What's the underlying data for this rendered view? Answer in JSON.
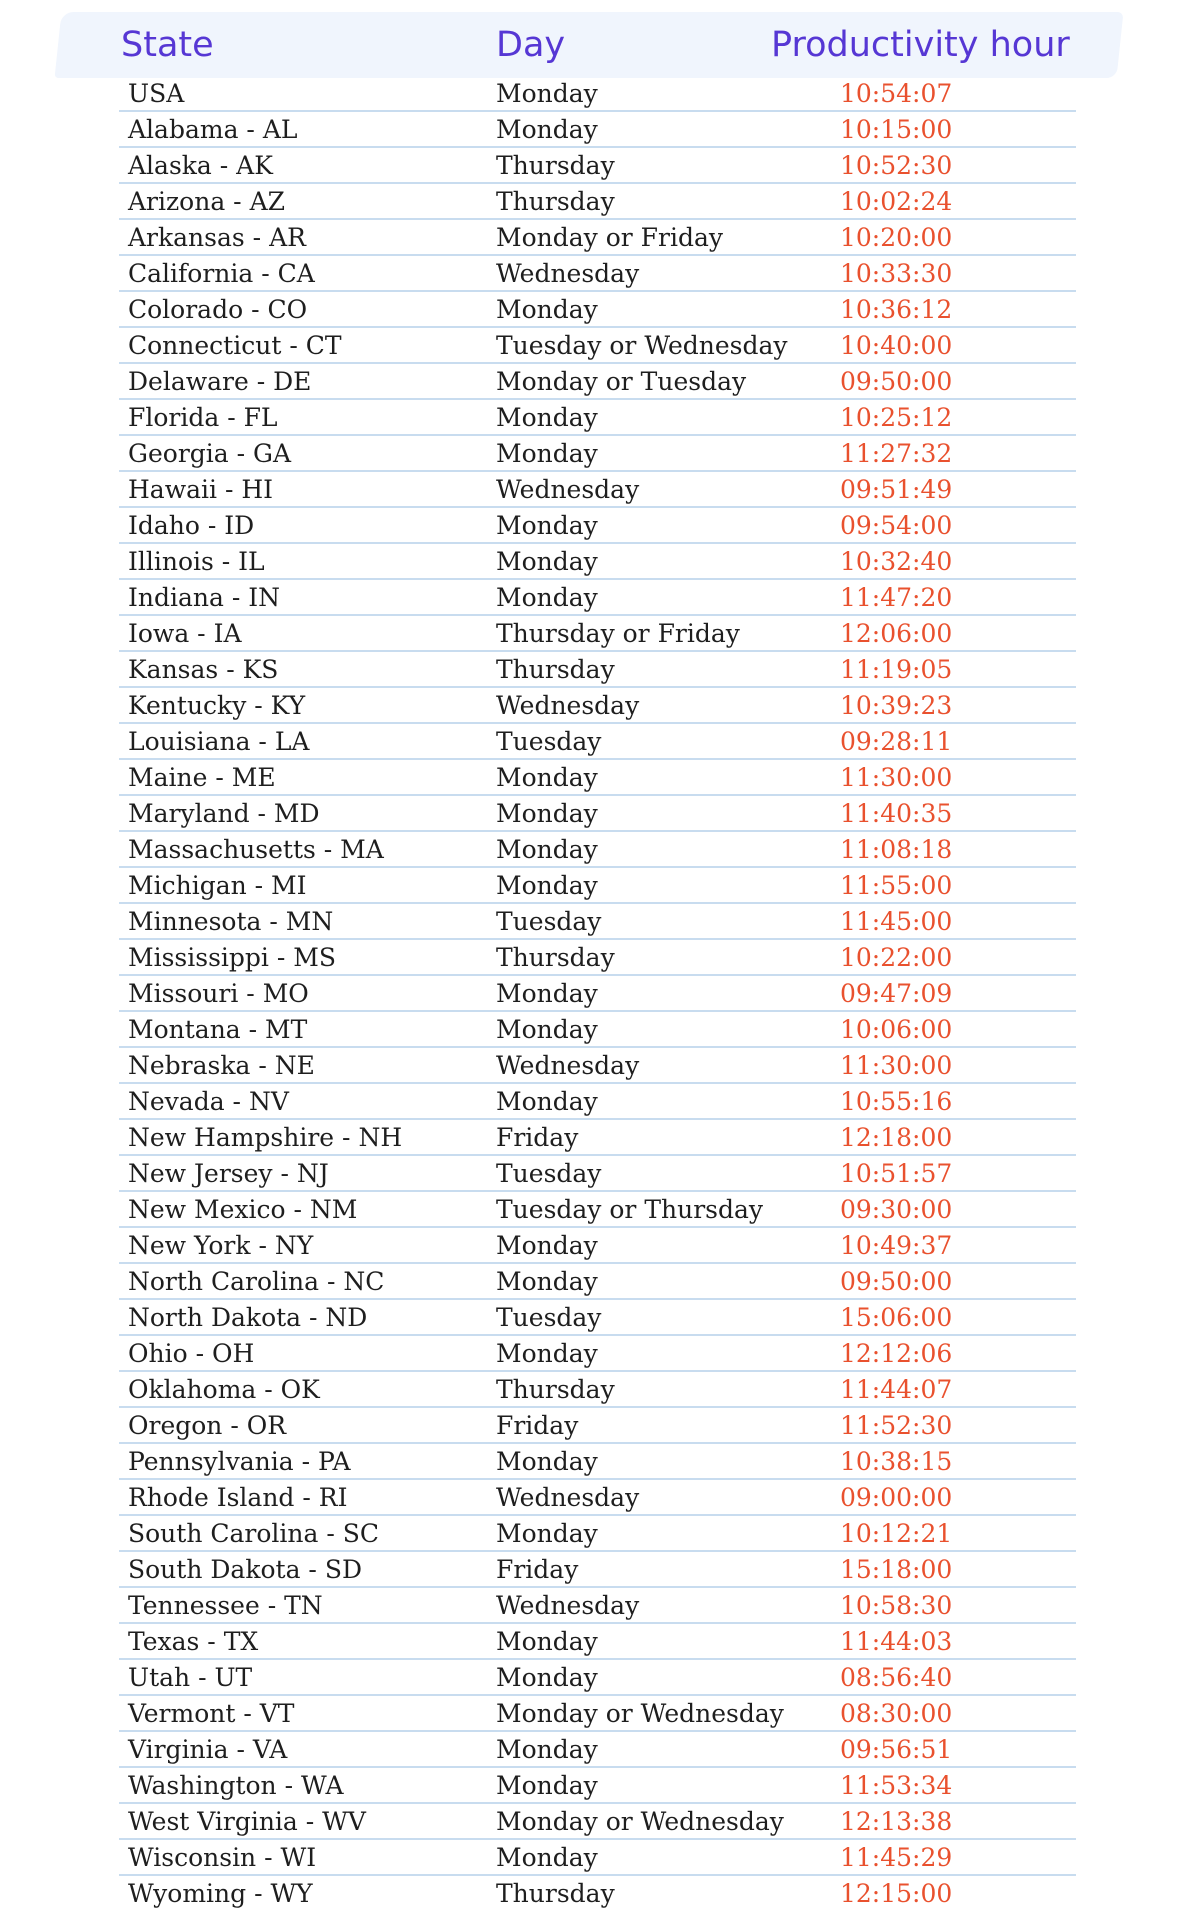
{
  "header": {
    "state_label": "State",
    "day_label": "Day",
    "hour_label": "Productivity hour"
  },
  "colors": {
    "header_text": "#5637d4",
    "hour_text": "#e9512e",
    "row_divider": "#c8dcef",
    "header_band": "#f0f5fd"
  },
  "rows": [
    {
      "state": "USA",
      "day": "Monday",
      "hour": "10:54:07"
    },
    {
      "state": "Alabama - AL",
      "day": "Monday",
      "hour": "10:15:00"
    },
    {
      "state": "Alaska - AK",
      "day": "Thursday",
      "hour": "10:52:30"
    },
    {
      "state": "Arizona - AZ",
      "day": "Thursday",
      "hour": "10:02:24"
    },
    {
      "state": "Arkansas - AR",
      "day": "Monday or Friday",
      "hour": "10:20:00"
    },
    {
      "state": "California - CA",
      "day": "Wednesday",
      "hour": "10:33:30"
    },
    {
      "state": "Colorado - CO",
      "day": "Monday",
      "hour": "10:36:12"
    },
    {
      "state": "Connecticut - CT",
      "day": "Tuesday or Wednesday",
      "hour": "10:40:00"
    },
    {
      "state": "Delaware - DE",
      "day": "Monday or Tuesday",
      "hour": "09:50:00"
    },
    {
      "state": "Florida - FL",
      "day": "Monday",
      "hour": "10:25:12"
    },
    {
      "state": "Georgia - GA",
      "day": "Monday",
      "hour": "11:27:32"
    },
    {
      "state": "Hawaii - HI",
      "day": "Wednesday",
      "hour": "09:51:49"
    },
    {
      "state": "Idaho - ID",
      "day": "Monday",
      "hour": "09:54:00"
    },
    {
      "state": "Illinois - IL",
      "day": "Monday",
      "hour": "10:32:40"
    },
    {
      "state": "Indiana - IN",
      "day": "Monday",
      "hour": "11:47:20"
    },
    {
      "state": "Iowa - IA",
      "day": "Thursday or Friday",
      "hour": "12:06:00"
    },
    {
      "state": "Kansas - KS",
      "day": "Thursday",
      "hour": "11:19:05"
    },
    {
      "state": "Kentucky - KY",
      "day": "Wednesday",
      "hour": "10:39:23"
    },
    {
      "state": "Louisiana - LA",
      "day": "Tuesday",
      "hour": "09:28:11"
    },
    {
      "state": "Maine - ME",
      "day": "Monday",
      "hour": "11:30:00"
    },
    {
      "state": "Maryland - MD",
      "day": "Monday",
      "hour": "11:40:35"
    },
    {
      "state": "Massachusetts - MA",
      "day": "Monday",
      "hour": "11:08:18"
    },
    {
      "state": "Michigan - MI",
      "day": "Monday",
      "hour": "11:55:00"
    },
    {
      "state": "Minnesota - MN",
      "day": "Tuesday",
      "hour": "11:45:00"
    },
    {
      "state": "Mississippi - MS",
      "day": "Thursday",
      "hour": "10:22:00"
    },
    {
      "state": "Missouri - MO",
      "day": "Monday",
      "hour": "09:47:09"
    },
    {
      "state": "Montana - MT",
      "day": "Monday",
      "hour": "10:06:00"
    },
    {
      "state": "Nebraska - NE",
      "day": "Wednesday",
      "hour": "11:30:00"
    },
    {
      "state": "Nevada - NV",
      "day": "Monday",
      "hour": "10:55:16"
    },
    {
      "state": "New Hampshire - NH",
      "day": "Friday",
      "hour": "12:18:00"
    },
    {
      "state": "New Jersey - NJ",
      "day": "Tuesday",
      "hour": "10:51:57"
    },
    {
      "state": "New Mexico - NM",
      "day": "Tuesday or Thursday",
      "hour": "09:30:00"
    },
    {
      "state": "New York - NY",
      "day": "Monday",
      "hour": "10:49:37"
    },
    {
      "state": "North Carolina - NC",
      "day": "Monday",
      "hour": "09:50:00"
    },
    {
      "state": "North Dakota - ND",
      "day": "Tuesday",
      "hour": "15:06:00"
    },
    {
      "state": "Ohio - OH",
      "day": "Monday",
      "hour": "12:12:06"
    },
    {
      "state": "Oklahoma - OK",
      "day": "Thursday",
      "hour": "11:44:07"
    },
    {
      "state": "Oregon - OR",
      "day": "Friday",
      "hour": "11:52:30"
    },
    {
      "state": "Pennsylvania - PA",
      "day": "Monday",
      "hour": "10:38:15"
    },
    {
      "state": "Rhode Island - RI",
      "day": "Wednesday",
      "hour": "09:00:00"
    },
    {
      "state": "South Carolina - SC",
      "day": "Monday",
      "hour": "10:12:21"
    },
    {
      "state": "South Dakota - SD",
      "day": "Friday",
      "hour": "15:18:00"
    },
    {
      "state": "Tennessee - TN",
      "day": "Wednesday",
      "hour": "10:58:30"
    },
    {
      "state": "Texas - TX",
      "day": "Monday",
      "hour": "11:44:03"
    },
    {
      "state": "Utah - UT",
      "day": "Monday",
      "hour": "08:56:40"
    },
    {
      "state": "Vermont - VT",
      "day": "Monday or Wednesday",
      "hour": "08:30:00"
    },
    {
      "state": "Virginia - VA",
      "day": "Monday",
      "hour": "09:56:51"
    },
    {
      "state": "Washington - WA",
      "day": "Monday",
      "hour": "11:53:34"
    },
    {
      "state": "West Virginia - WV",
      "day": "Monday or Wednesday",
      "hour": "12:13:38"
    },
    {
      "state": "Wisconsin - WI",
      "day": "Monday",
      "hour": "11:45:29"
    },
    {
      "state": "Wyoming - WY",
      "day": "Thursday",
      "hour": "12:15:00"
    }
  ]
}
